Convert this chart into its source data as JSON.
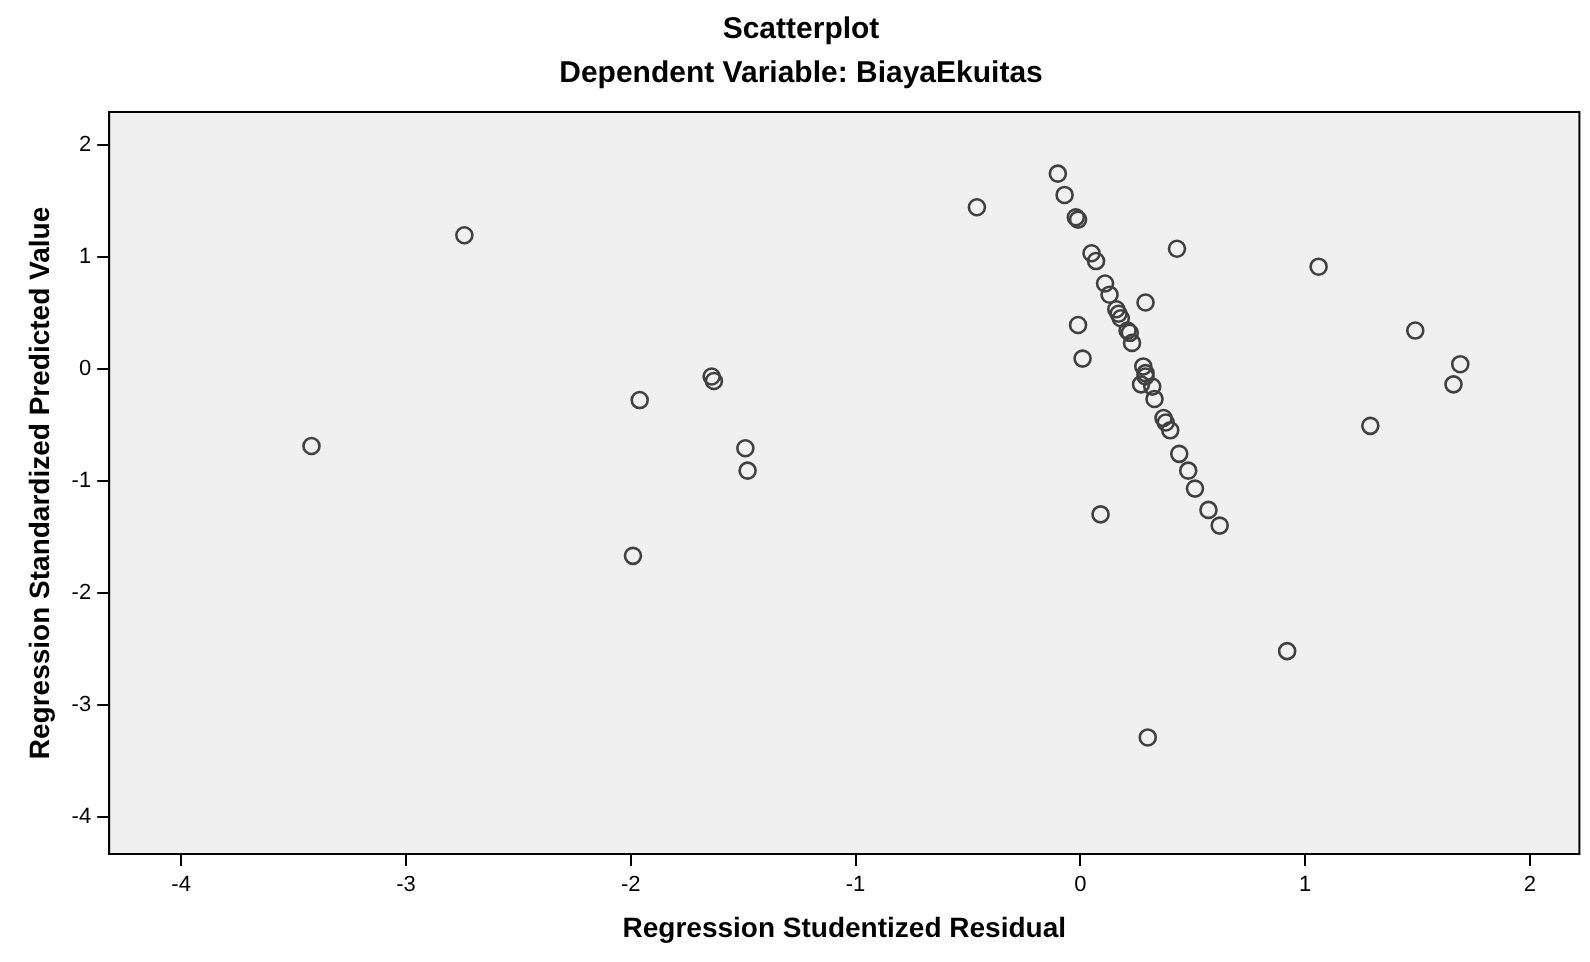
{
  "chart_data": {
    "type": "scatter",
    "title": "Scatterplot",
    "subtitle": "Dependent Variable: BiayaEkuitas",
    "xlabel": "Regression Studentized Residual",
    "ylabel": "Regression Standardized Predicted Value",
    "xlim": [
      -4.32,
      2.22
    ],
    "ylim": [
      -4.33,
      2.29
    ],
    "xticks": [
      -4,
      -3,
      -2,
      -1,
      0,
      1,
      2
    ],
    "yticks": [
      -4,
      -3,
      -2,
      -1,
      0,
      1,
      2
    ],
    "grid": false,
    "legend": false,
    "marker": "circle",
    "series": [
      {
        "color": "#404040",
        "x": [
          -2.74,
          -3.42,
          -1.64,
          -1.63,
          -1.96,
          -1.49,
          -1.48,
          -1.99,
          -0.1,
          -0.46,
          -0.07,
          -0.02,
          -0.01,
          0.43,
          0.05,
          0.07,
          1.06,
          0.11,
          0.13,
          0.29,
          0.16,
          0.17,
          0.18,
          0.21,
          0.22,
          0.23,
          -0.01,
          1.49,
          0.01,
          1.69,
          0.28,
          0.29,
          0.29,
          0.27,
          1.66,
          0.32,
          0.33,
          0.37,
          0.38,
          0.4,
          1.29,
          0.44,
          0.48,
          0.51,
          0.57,
          0.62,
          0.09,
          0.92,
          0.3
        ],
        "values": [
          1.19,
          -0.69,
          -0.07,
          -0.11,
          -0.28,
          -0.71,
          -0.91,
          -1.67,
          1.74,
          1.44,
          1.55,
          1.35,
          1.33,
          1.07,
          1.03,
          0.96,
          0.91,
          0.76,
          0.66,
          0.59,
          0.53,
          0.49,
          0.45,
          0.34,
          0.32,
          0.23,
          0.39,
          0.34,
          0.09,
          0.04,
          0.02,
          -0.04,
          -0.07,
          -0.14,
          -0.14,
          -0.16,
          -0.27,
          -0.44,
          -0.48,
          -0.55,
          -0.51,
          -0.76,
          -0.91,
          -1.07,
          -1.26,
          -1.4,
          -1.3,
          -2.52,
          -3.29
        ]
      }
    ]
  }
}
